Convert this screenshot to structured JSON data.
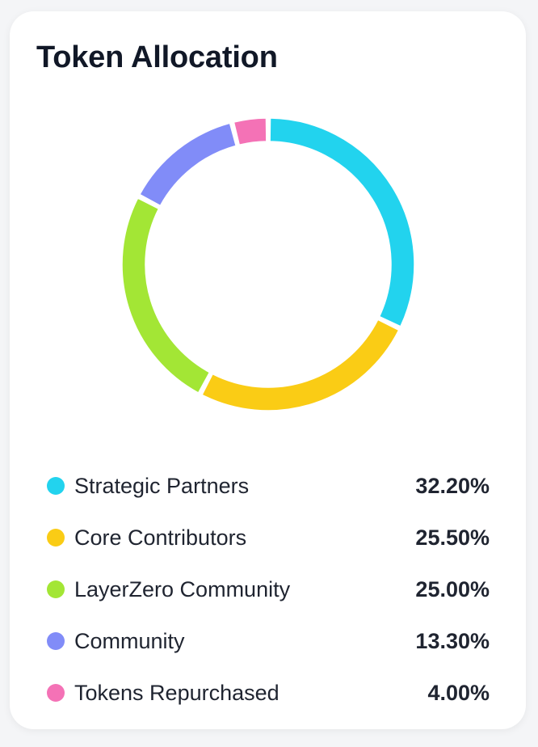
{
  "title": "Token Allocation",
  "chart_data": {
    "type": "pie",
    "variant": "donut",
    "title": "Token Allocation",
    "categories": [
      "Strategic Partners",
      "Core Contributors",
      "LayerZero Community",
      "Community",
      "Tokens Repurchased"
    ],
    "values": [
      32.2,
      25.5,
      25.0,
      13.3,
      4.0
    ],
    "value_labels": [
      "32.20%",
      "25.50%",
      "25.00%",
      "13.30%",
      "4.00%"
    ],
    "colors": [
      "#22d3ee",
      "#facc15",
      "#a3e635",
      "#818cf8",
      "#f472b6"
    ],
    "unit": "%",
    "legend": "bottom"
  }
}
